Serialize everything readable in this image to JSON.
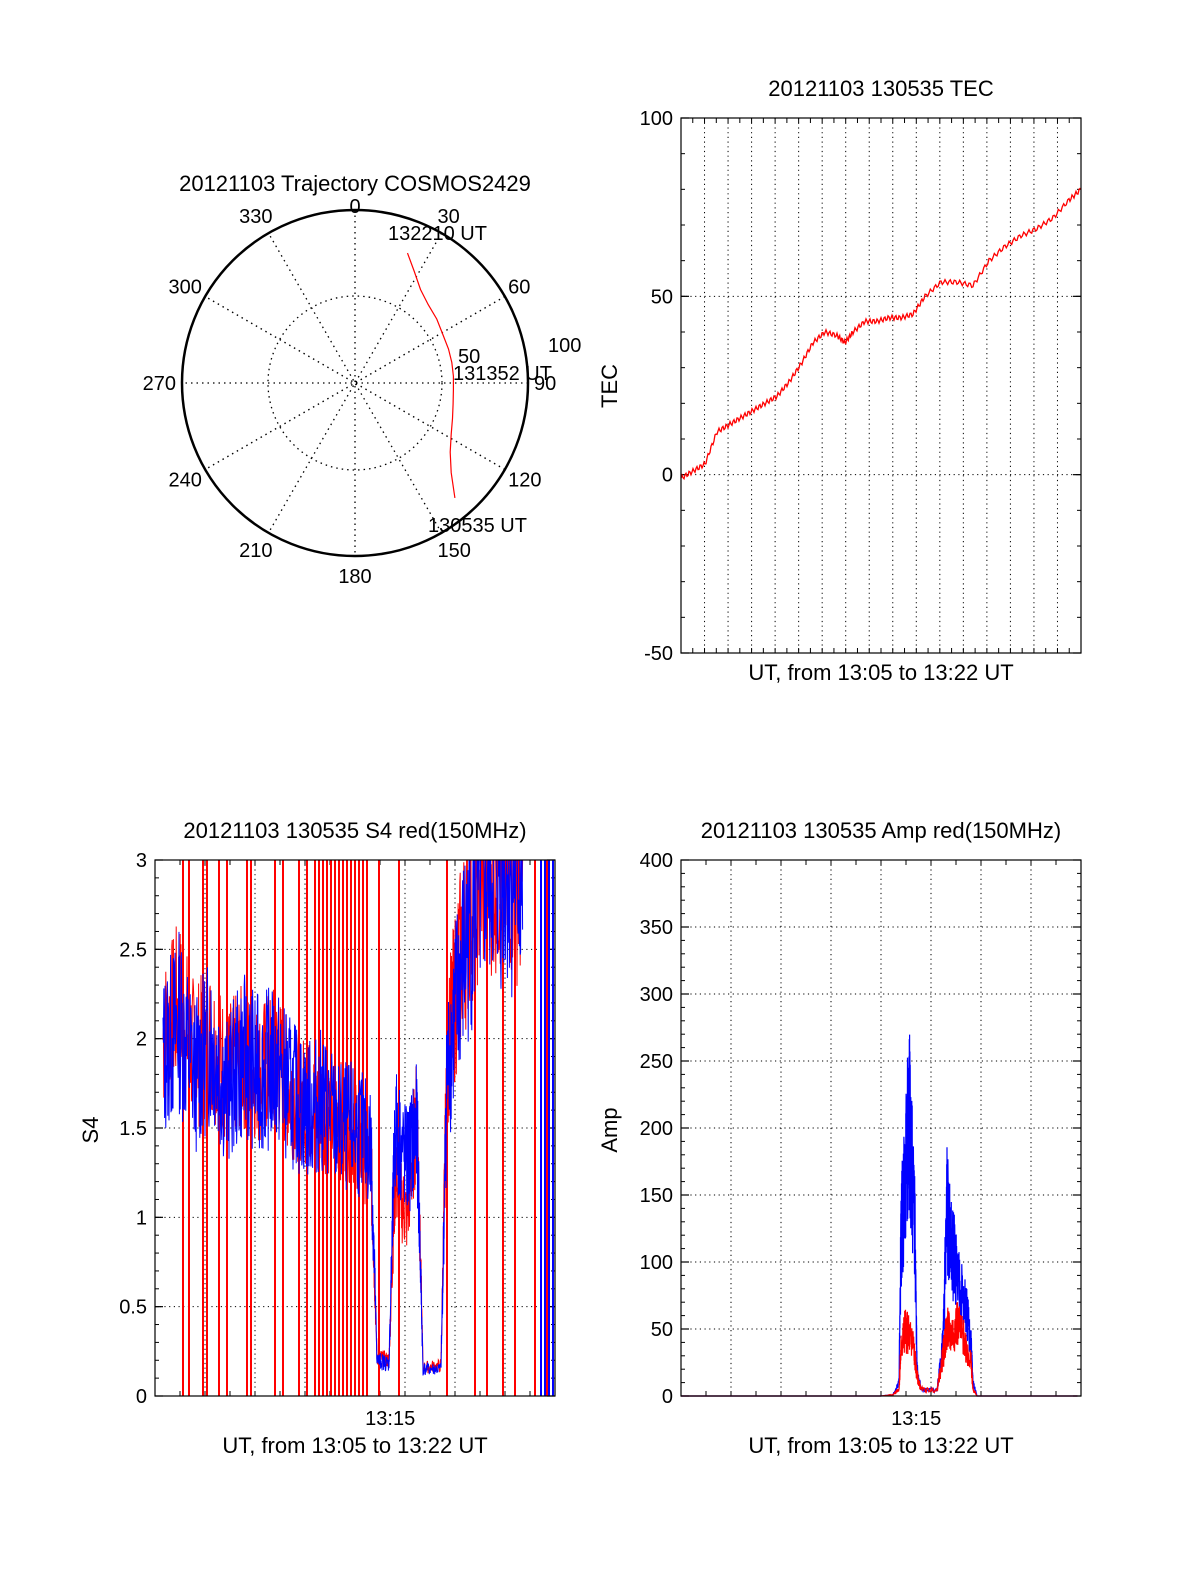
{
  "colors": {
    "red": "#ff0000",
    "blue": "#0000ff",
    "axis": "#000000",
    "grid": "#000000"
  },
  "chart_data": [
    {
      "id": "trajectory",
      "type": "polar",
      "title": "20121103 Trajectory COSMOS2429",
      "angle_ticks": [
        "0",
        "30",
        "60",
        "90",
        "120",
        "150",
        "180",
        "210",
        "240",
        "270",
        "300",
        "330"
      ],
      "radius_ticks": [
        "50",
        "100"
      ],
      "max_radius": 100,
      "track": [
        {
          "az": 22,
          "r": 81
        },
        {
          "az": 28,
          "r": 73
        },
        {
          "az": 35,
          "r": 66
        },
        {
          "az": 43,
          "r": 62
        },
        {
          "az": 52,
          "r": 60
        },
        {
          "az": 61,
          "r": 58
        },
        {
          "az": 70,
          "r": 57.5
        },
        {
          "az": 78,
          "r": 57.2
        },
        {
          "az": 86,
          "r": 57
        },
        {
          "az": 94,
          "r": 57
        },
        {
          "az": 102,
          "r": 58
        },
        {
          "az": 110,
          "r": 60
        },
        {
          "az": 118,
          "r": 63
        },
        {
          "az": 126,
          "r": 68
        },
        {
          "az": 133,
          "r": 76
        },
        {
          "az": 139,
          "r": 88
        }
      ],
      "annotations": [
        "132210 UT",
        "131352 UT",
        "130535 UT"
      ]
    },
    {
      "id": "tec",
      "type": "line",
      "title": "20121103 130535 TEC",
      "xlabel": "UT, from 13:05 to 13:22 UT",
      "ylabel": "TEC",
      "xlim": [
        0,
        1
      ],
      "ylim": [
        -50,
        100
      ],
      "yticks": [
        "-50",
        "0",
        "50",
        "100"
      ],
      "series": [
        {
          "values": [
            [
              0,
              -1
            ],
            [
              0.03,
              1
            ],
            [
              0.06,
              3
            ],
            [
              0.09,
              12
            ],
            [
              0.12,
              14
            ],
            [
              0.15,
              16
            ],
            [
              0.18,
              18
            ],
            [
              0.21,
              20
            ],
            [
              0.24,
              22
            ],
            [
              0.27,
              26
            ],
            [
              0.3,
              31
            ],
            [
              0.33,
              37
            ],
            [
              0.36,
              40
            ],
            [
              0.39,
              39
            ],
            [
              0.41,
              37
            ],
            [
              0.43,
              40
            ],
            [
              0.46,
              43
            ],
            [
              0.49,
              43
            ],
            [
              0.52,
              44
            ],
            [
              0.55,
              44
            ],
            [
              0.58,
              45
            ],
            [
              0.61,
              50
            ],
            [
              0.65,
              54
            ],
            [
              0.69,
              54
            ],
            [
              0.73,
              53
            ],
            [
              0.77,
              60
            ],
            [
              0.81,
              64
            ],
            [
              0.85,
              67
            ],
            [
              0.89,
              69
            ],
            [
              0.93,
              72
            ],
            [
              0.97,
              77
            ],
            [
              1,
              80
            ]
          ]
        }
      ]
    },
    {
      "id": "s4",
      "type": "line",
      "title": "20121103 130535 S4 red(150MHz)",
      "xlabel": "UT, from 13:05 to 13:22 UT",
      "ylabel": "S4",
      "xlim": [
        0,
        1
      ],
      "ylim": [
        0,
        3
      ],
      "yticks": [
        "0",
        "0.5",
        "1",
        "1.5",
        "2",
        "2.5",
        "3"
      ],
      "xtick_label": "13:15",
      "xtick_pos": 0.588,
      "series_blue": [
        [
          0.02,
          1.9
        ],
        [
          0.06,
          2.1
        ],
        [
          0.1,
          1.8
        ],
        [
          0.14,
          2.0
        ],
        [
          0.18,
          1.7
        ],
        [
          0.22,
          1.9
        ],
        [
          0.26,
          1.8
        ],
        [
          0.3,
          1.85
        ],
        [
          0.34,
          1.7
        ],
        [
          0.38,
          1.6
        ],
        [
          0.42,
          1.65
        ],
        [
          0.46,
          1.5
        ],
        [
          0.5,
          1.5
        ],
        [
          0.54,
          1.4
        ],
        [
          0.555,
          0.2
        ],
        [
          0.585,
          0.18
        ],
        [
          0.6,
          1.5
        ],
        [
          0.63,
          1.3
        ],
        [
          0.655,
          1.5
        ],
        [
          0.67,
          0.15
        ],
        [
          0.715,
          0.15
        ],
        [
          0.73,
          1.8
        ],
        [
          0.76,
          2.3
        ],
        [
          0.8,
          2.8
        ],
        [
          0.84,
          3.0
        ],
        [
          0.88,
          3.0
        ],
        [
          0.92,
          2.9
        ]
      ],
      "series_red": [
        [
          0.02,
          2.0
        ],
        [
          0.06,
          2.2
        ],
        [
          0.1,
          1.9
        ],
        [
          0.14,
          2.0
        ],
        [
          0.18,
          1.8
        ],
        [
          0.22,
          1.9
        ],
        [
          0.26,
          1.8
        ],
        [
          0.3,
          1.9
        ],
        [
          0.34,
          1.7
        ],
        [
          0.38,
          1.65
        ],
        [
          0.42,
          1.6
        ],
        [
          0.46,
          1.55
        ],
        [
          0.5,
          1.5
        ],
        [
          0.54,
          1.3
        ],
        [
          0.555,
          0.22
        ],
        [
          0.585,
          0.2
        ],
        [
          0.6,
          1.2
        ],
        [
          0.63,
          1.0
        ],
        [
          0.655,
          1.6
        ],
        [
          0.67,
          0.16
        ],
        [
          0.715,
          0.17
        ],
        [
          0.73,
          1.9
        ],
        [
          0.76,
          2.4
        ],
        [
          0.8,
          2.9
        ],
        [
          0.84,
          3.0
        ],
        [
          0.88,
          3.0
        ],
        [
          0.92,
          2.9
        ]
      ]
    },
    {
      "id": "amp",
      "type": "line",
      "title": "20121103 130535 Amp red(150MHz)",
      "xlabel": "UT, from 13:05 to 13:22 UT",
      "ylabel": "Amp",
      "xlim": [
        0,
        1
      ],
      "ylim": [
        0,
        400
      ],
      "yticks": [
        "0",
        "50",
        "100",
        "150",
        "200",
        "250",
        "300",
        "350",
        "400"
      ],
      "xtick_label": "13:15",
      "xtick_pos": 0.588,
      "series_blue": [
        [
          0,
          0
        ],
        [
          0.5,
          0
        ],
        [
          0.53,
          1
        ],
        [
          0.545,
          10
        ],
        [
          0.55,
          120
        ],
        [
          0.56,
          160
        ],
        [
          0.57,
          210
        ],
        [
          0.575,
          180
        ],
        [
          0.585,
          120
        ],
        [
          0.59,
          20
        ],
        [
          0.6,
          5
        ],
        [
          0.64,
          4
        ],
        [
          0.655,
          40
        ],
        [
          0.665,
          140
        ],
        [
          0.675,
          110
        ],
        [
          0.685,
          100
        ],
        [
          0.7,
          80
        ],
        [
          0.715,
          60
        ],
        [
          0.725,
          40
        ],
        [
          0.73,
          10
        ],
        [
          0.74,
          0
        ],
        [
          1,
          0
        ]
      ],
      "series_red": [
        [
          0,
          0
        ],
        [
          0.5,
          0
        ],
        [
          0.53,
          1
        ],
        [
          0.545,
          5
        ],
        [
          0.55,
          35
        ],
        [
          0.56,
          50
        ],
        [
          0.57,
          45
        ],
        [
          0.58,
          40
        ],
        [
          0.59,
          15
        ],
        [
          0.6,
          5
        ],
        [
          0.64,
          4
        ],
        [
          0.655,
          30
        ],
        [
          0.665,
          50
        ],
        [
          0.675,
          45
        ],
        [
          0.69,
          55
        ],
        [
          0.71,
          40
        ],
        [
          0.725,
          25
        ],
        [
          0.73,
          5
        ],
        [
          0.74,
          0
        ],
        [
          1,
          0
        ]
      ]
    }
  ]
}
